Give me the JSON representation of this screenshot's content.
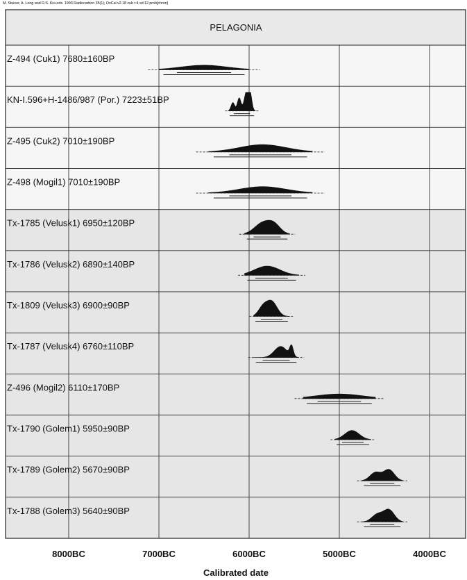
{
  "header_text": "M. Stuiver, A. Long and R.S. Kra eds. 1993 Radiocarbon 35(1);  OxCal v2.18 cub r:4 sd:12 prob[chron]",
  "chart_data": {
    "type": "multiplot",
    "title": "PELAGONIA",
    "xlabel": "Calibrated date",
    "ylabel": "",
    "xlim": [
      -8700,
      -3600
    ],
    "x_ticks": [
      {
        "value": -8000,
        "label": "8000BC"
      },
      {
        "value": -7000,
        "label": "7000BC"
      },
      {
        "value": -6000,
        "label": "6000BC"
      },
      {
        "value": -5000,
        "label": "5000BC"
      },
      {
        "value": -4000,
        "label": "4000BC"
      }
    ],
    "grid": true,
    "series": [
      {
        "name": "Z-494 (Cuk1)  7680±160BP",
        "lab_code": "Z-494",
        "site": "Cuk1",
        "bp": 7680,
        "error": 160,
        "range": [
          -7000,
          -6000
        ],
        "peaks": [
          {
            "center": -6500,
            "height": 0.25,
            "width": 260
          }
        ]
      },
      {
        "name": "KN-I.596+H-1486/987 (Por.)  7223±51BP",
        "lab_code": "KN-I.596+H-1486/987",
        "site": "Por.",
        "bp": 7223,
        "error": 51,
        "range": [
          -6230,
          -5930
        ],
        "peaks": [
          {
            "center": -6180,
            "height": 0.45,
            "width": 20
          },
          {
            "center": -6110,
            "height": 0.7,
            "width": 20
          },
          {
            "center": -6030,
            "height": 1.0,
            "width": 25
          },
          {
            "center": -5990,
            "height": 0.9,
            "width": 20
          }
        ]
      },
      {
        "name": "Z-495 (Cuk2)  7010±190BP",
        "lab_code": "Z-495",
        "site": "Cuk2",
        "bp": 7010,
        "error": 190,
        "range": [
          -6450,
          -5300
        ],
        "peaks": [
          {
            "center": -5850,
            "height": 0.4,
            "width": 260
          }
        ]
      },
      {
        "name": "Z-498 (Mogil1)  7010±190BP",
        "lab_code": "Z-498",
        "site": "Mogil1",
        "bp": 7010,
        "error": 190,
        "range": [
          -6450,
          -5300
        ],
        "peaks": [
          {
            "center": -5850,
            "height": 0.35,
            "width": 260
          }
        ]
      },
      {
        "name": "Tx-1785 (Velusk1)  6950±120BP",
        "lab_code": "Tx-1785",
        "site": "Velusk1",
        "bp": 6950,
        "error": 120,
        "range": [
          -6050,
          -5550
        ],
        "peaks": [
          {
            "center": -5850,
            "height": 0.6,
            "width": 90
          },
          {
            "center": -5720,
            "height": 0.45,
            "width": 70
          }
        ]
      },
      {
        "name": "Tx-1786 (Velusk2)  6890±140BP",
        "lab_code": "Tx-1786",
        "site": "Velusk2",
        "bp": 6890,
        "error": 140,
        "range": [
          -6050,
          -5450
        ],
        "peaks": [
          {
            "center": -5800,
            "height": 0.5,
            "width": 140
          }
        ]
      },
      {
        "name": "Tx-1809 (Velusk3)  6900±90BP",
        "lab_code": "Tx-1809",
        "site": "Velusk3",
        "bp": 6900,
        "error": 90,
        "range": [
          -5950,
          -5550
        ],
        "peaks": [
          {
            "center": -5850,
            "height": 0.45,
            "width": 50
          },
          {
            "center": -5750,
            "height": 0.8,
            "width": 60
          }
        ]
      },
      {
        "name": "Tx-1787 (Velusk4)  6760±110BP",
        "lab_code": "Tx-1787",
        "site": "Velusk4",
        "bp": 6760,
        "error": 110,
        "range": [
          -5950,
          -5450
        ],
        "peaks": [
          {
            "center": -5650,
            "height": 0.6,
            "width": 70
          },
          {
            "center": -5530,
            "height": 0.55,
            "width": 20
          }
        ]
      },
      {
        "name": "Z-496 (Mogil2)  6110±170BP",
        "lab_code": "Z-496",
        "site": "Mogil2",
        "bp": 6110,
        "error": 170,
        "range": [
          -5400,
          -4600
        ],
        "peaks": [
          {
            "center": -5000,
            "height": 0.25,
            "width": 260
          }
        ]
      },
      {
        "name": "Tx-1790 (Golem1)  5950±90BP",
        "lab_code": "Tx-1790",
        "site": "Golem1",
        "bp": 5950,
        "error": 90,
        "range": [
          -5050,
          -4650
        ],
        "peaks": [
          {
            "center": -4860,
            "height": 0.5,
            "width": 80
          }
        ]
      },
      {
        "name": "Tx-1789 (Golem2)  5670±90BP",
        "lab_code": "Tx-1789",
        "site": "Golem2",
        "bp": 5670,
        "error": 90,
        "range": [
          -4750,
          -4300
        ],
        "peaks": [
          {
            "center": -4600,
            "height": 0.45,
            "width": 60
          },
          {
            "center": -4450,
            "height": 0.6,
            "width": 60
          }
        ]
      },
      {
        "name": "Tx-1788 (Golem3)  5640±90BP",
        "lab_code": "Tx-1788",
        "site": "Golem3",
        "bp": 5640,
        "error": 90,
        "range": [
          -4750,
          -4300
        ],
        "peaks": [
          {
            "center": -4580,
            "height": 0.4,
            "width": 60
          },
          {
            "center": -4450,
            "height": 0.65,
            "width": 60
          }
        ]
      }
    ]
  }
}
